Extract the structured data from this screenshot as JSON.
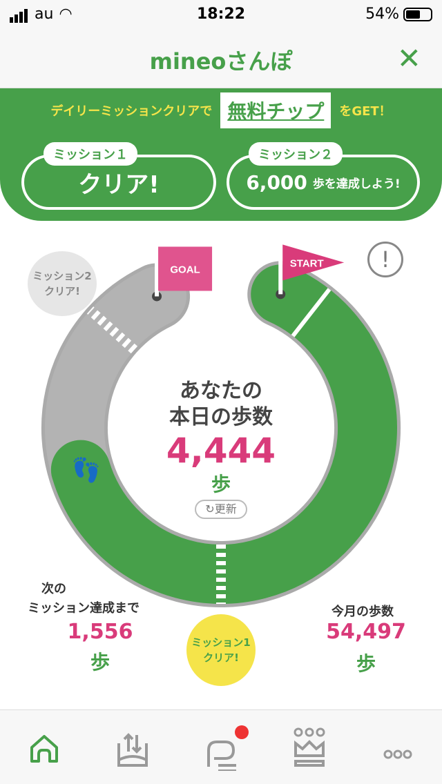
{
  "status_bar": {
    "carrier": "au",
    "time": "18:22",
    "battery": "54%",
    "battery_level": 0.54
  },
  "header": {
    "title": "mineoさんぽ",
    "close_icon": "close-icon"
  },
  "banner": {
    "prefix": "デイリーミッションクリアで",
    "highlight": "無料チップ",
    "suffix": "をGET！",
    "missions": [
      {
        "tag": "ミッション１",
        "text": "クリア!"
      },
      {
        "tag": "ミッション２",
        "number": "6,000",
        "text": "歩を達成しよう!"
      }
    ]
  },
  "course": {
    "goal_label": "GOAL",
    "start_label": "START",
    "mission2_bubble": [
      "ミッション2",
      "クリア!"
    ],
    "mission1_bubble": [
      "ミッション1",
      "クリア!"
    ],
    "title_line1": "あなたの",
    "title_line2": "本日の歩数",
    "steps": "4,444",
    "unit": "歩",
    "refresh": "更新",
    "progress_fraction": 0.74,
    "colors": {
      "done": "#47a04a",
      "remaining": "#b3b3b3",
      "accent": "#d93b7a"
    }
  },
  "stats": {
    "next_label_1": "次の",
    "next_label_2": "ミッション達成まで",
    "next_value": "1,556",
    "month_label": "今月の歩数",
    "month_value": "54,497",
    "unit": "歩"
  },
  "nav": [
    {
      "icon": "home-icon",
      "active": true
    },
    {
      "icon": "data-transfer-icon"
    },
    {
      "icon": "chat-icon",
      "badge": true
    },
    {
      "icon": "crown-icon"
    },
    {
      "icon": "more-icon"
    }
  ]
}
